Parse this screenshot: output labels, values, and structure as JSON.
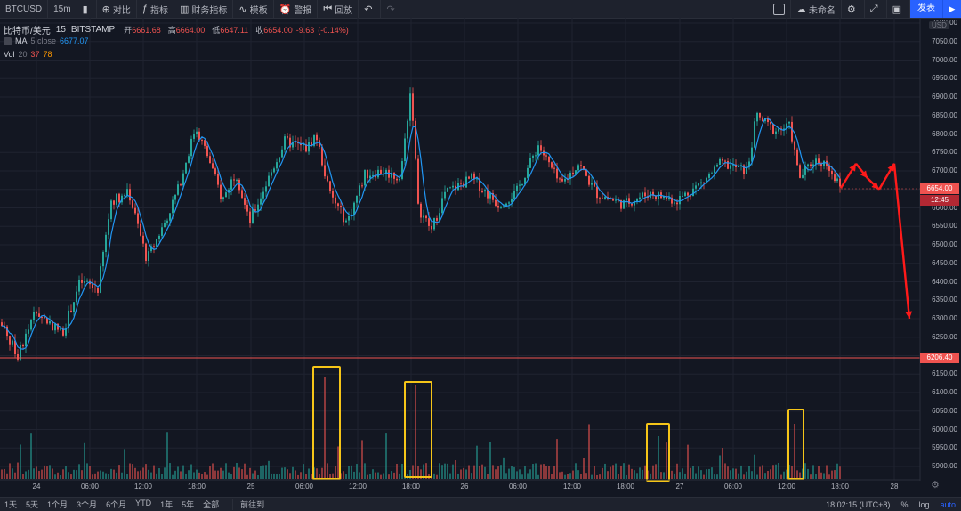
{
  "toolbar": {
    "symbol": "BTCUSD",
    "interval": "15m",
    "compare": "对比",
    "indicators": "指标",
    "financials": "财务指标",
    "template": "模板",
    "alert": "警报",
    "replay": "回放",
    "layout_name": "未命名",
    "publish": "发表",
    "icons": [
      "candles-icon",
      "compare-plus-icon",
      "indicator-fx-icon",
      "financials-icon",
      "template-icon",
      "alarm-icon",
      "replay-icon",
      "undo-icon",
      "redo-icon",
      "layout-square-icon",
      "cloud-icon",
      "gear-icon",
      "fullscreen-icon",
      "camera-icon",
      "play-icon"
    ]
  },
  "legend": {
    "title": "比特币/美元",
    "interval": "15",
    "exchange": "BITSTAMP",
    "open_label": "开",
    "open": "6661.68",
    "high_label": "高",
    "high": "6664.00",
    "low_label": "低",
    "low": "6647.11",
    "close_label": "收",
    "close": "6654.00",
    "change": "-9.63",
    "change_pct": "(-0.14%)",
    "ma_name": "MA",
    "ma_params": "5 close",
    "ma_value": "6677.07",
    "vol_name": "Vol",
    "vol_param": "20",
    "vol_value1": "37",
    "vol_value2": "78"
  },
  "price_axis": {
    "currency": "USD",
    "labels": [
      "7100.00",
      "7050.00",
      "7000.00",
      "6950.00",
      "6900.00",
      "6850.00",
      "6800.00",
      "6750.00",
      "6700.00",
      "6650.00",
      "6600.00",
      "6550.00",
      "6500.00",
      "6450.00",
      "6400.00",
      "6350.00",
      "6300.00",
      "6250.00",
      "6200.00",
      "6150.00",
      "6100.00",
      "6050.00",
      "6000.00",
      "5950.00",
      "5900.00"
    ],
    "current_price": "6654.00",
    "countdown": "12:45",
    "hline_price": "6206.40"
  },
  "time_axis": {
    "labels": [
      "24",
      "06:00",
      "12:00",
      "18:00",
      "25",
      "06:00",
      "12:00",
      "18:00",
      "26",
      "06:00",
      "12:00",
      "18:00",
      "27",
      "06:00",
      "12:00",
      "18:00",
      "28"
    ]
  },
  "bottom": {
    "ranges": [
      "1天",
      "5天",
      "1个月",
      "3个月",
      "6个月",
      "YTD",
      "1年",
      "5年",
      "全部"
    ],
    "goto": "前往到...",
    "clock": "18:02:15 (UTC+8)",
    "percent": "%",
    "log": "log",
    "auto": "auto"
  },
  "colors": {
    "background": "#131722",
    "up": "#26a69a",
    "down": "#ef5350",
    "ma": "#2196f3",
    "annotation_box": "#f5c518",
    "annotation_arrow": "#ff1a1a",
    "accent": "#2962ff"
  },
  "chart_data": {
    "type": "candlestick",
    "symbol": "BTCUSD",
    "y_range": [
      5880,
      7110
    ],
    "key_prices": {
      "last": 6654.0,
      "horizontal_line": 6206.4
    },
    "price_path": [
      [
        0,
        6290
      ],
      [
        20,
        6200
      ],
      [
        40,
        6320
      ],
      [
        70,
        6260
      ],
      [
        90,
        6400
      ],
      [
        110,
        6380
      ],
      [
        125,
        6620
      ],
      [
        145,
        6640
      ],
      [
        165,
        6460
      ],
      [
        185,
        6560
      ],
      [
        200,
        6650
      ],
      [
        220,
        6820
      ],
      [
        235,
        6730
      ],
      [
        250,
        6620
      ],
      [
        265,
        6700
      ],
      [
        280,
        6560
      ],
      [
        300,
        6670
      ],
      [
        320,
        6780
      ],
      [
        345,
        6760
      ],
      [
        355,
        6800
      ],
      [
        370,
        6640
      ],
      [
        390,
        6560
      ],
      [
        410,
        6690
      ],
      [
        430,
        6700
      ],
      [
        450,
        6680
      ],
      [
        462,
        6930
      ],
      [
        470,
        6600
      ],
      [
        485,
        6540
      ],
      [
        500,
        6640
      ],
      [
        530,
        6680
      ],
      [
        560,
        6610
      ],
      [
        580,
        6640
      ],
      [
        605,
        6770
      ],
      [
        630,
        6660
      ],
      [
        650,
        6720
      ],
      [
        670,
        6640
      ],
      [
        700,
        6610
      ],
      [
        730,
        6640
      ],
      [
        760,
        6620
      ],
      [
        790,
        6670
      ],
      [
        810,
        6720
      ],
      [
        840,
        6700
      ],
      [
        850,
        6850
      ],
      [
        870,
        6810
      ],
      [
        888,
        6820
      ],
      [
        898,
        6680
      ],
      [
        915,
        6730
      ],
      [
        930,
        6720
      ],
      [
        945,
        6650
      ]
    ],
    "annotation_boxes_on_volume_spikes": [
      {
        "time": "~25 09:00"
      },
      {
        "time": "~25 18:00"
      },
      {
        "time": "~26 23:00"
      },
      {
        "time": "~27 12:30"
      }
    ],
    "drawn_projection": [
      [
        945,
        6654
      ],
      [
        962,
        6720
      ],
      [
        975,
        6680
      ],
      [
        988,
        6650
      ],
      [
        1005,
        6720
      ],
      [
        1022,
        6300
      ]
    ]
  }
}
